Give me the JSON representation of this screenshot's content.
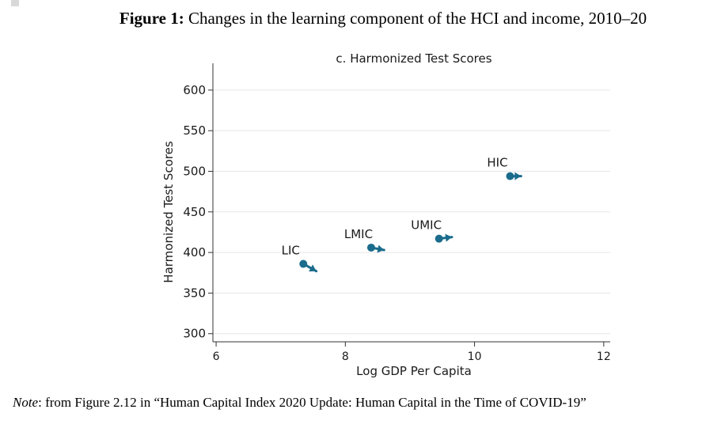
{
  "figure": {
    "label": "Figure 1:",
    "title": " Changes in the learning component of the HCI and income, 2010–20"
  },
  "note": {
    "label": "Note",
    "text": ": from Figure 2.12 in “Human Capital Index 2020 Update: Human Capital in the Time of COVID-19”"
  },
  "chart_data": {
    "type": "scatter",
    "title": "c. Harmonized Test Scores",
    "xlabel": "Log GDP Per Capita",
    "ylabel": "Harmonized Test Scores",
    "xlim": [
      5.95,
      12.1
    ],
    "ylim": [
      290,
      633
    ],
    "xticks": [
      6,
      8,
      10,
      12
    ],
    "yticks": [
      300,
      350,
      400,
      450,
      500,
      550,
      600
    ],
    "grid": true,
    "marker_color": "#1b6c8c",
    "series": [
      {
        "label": "LIC",
        "start": {
          "x": 7.35,
          "y": 386
        },
        "end": {
          "x": 7.55,
          "y": 377
        }
      },
      {
        "label": "LMIC",
        "start": {
          "x": 8.4,
          "y": 406
        },
        "end": {
          "x": 8.6,
          "y": 403
        }
      },
      {
        "label": "UMIC",
        "start": {
          "x": 9.45,
          "y": 417
        },
        "end": {
          "x": 9.65,
          "y": 419
        }
      },
      {
        "label": "HIC",
        "start": {
          "x": 10.55,
          "y": 494
        },
        "end": {
          "x": 10.72,
          "y": 494
        }
      }
    ]
  }
}
